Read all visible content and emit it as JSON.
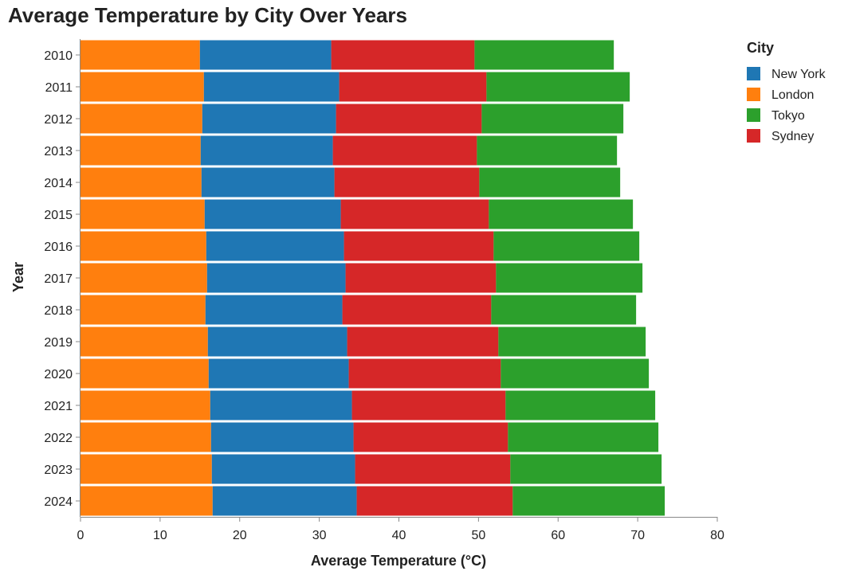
{
  "chart_data": {
    "type": "bar",
    "orientation": "horizontal",
    "stacked": true,
    "title": "Average Temperature by City Over Years",
    "xlabel": "Average Temperature (°C)",
    "ylabel": "Year",
    "xlim": [
      0,
      80
    ],
    "xticks": [
      0,
      10,
      20,
      30,
      40,
      50,
      60,
      70,
      80
    ],
    "grid": false,
    "legend_title": "City",
    "legend_position": "right",
    "categories": [
      "2010",
      "2011",
      "2012",
      "2013",
      "2014",
      "2015",
      "2016",
      "2017",
      "2018",
      "2019",
      "2020",
      "2021",
      "2022",
      "2023",
      "2024"
    ],
    "legend_order": [
      "New York",
      "London",
      "Tokyo",
      "Sydney"
    ],
    "stack_order": [
      "London",
      "New York",
      "Sydney",
      "Tokyo"
    ],
    "series": [
      {
        "name": "New York",
        "color": "#1f77b4",
        "values": [
          16.5,
          17.0,
          16.8,
          16.6,
          16.7,
          17.1,
          17.3,
          17.4,
          17.2,
          17.5,
          17.6,
          17.8,
          17.9,
          18.0,
          18.1
        ]
      },
      {
        "name": "London",
        "color": "#ff7f0e",
        "values": [
          15.0,
          15.5,
          15.3,
          15.1,
          15.2,
          15.6,
          15.8,
          15.9,
          15.7,
          16.0,
          16.1,
          16.3,
          16.4,
          16.5,
          16.6
        ]
      },
      {
        "name": "Tokyo",
        "color": "#2ca02c",
        "values": [
          17.5,
          18.0,
          17.8,
          17.6,
          17.7,
          18.1,
          18.3,
          18.4,
          18.2,
          18.5,
          18.6,
          18.8,
          18.9,
          19.0,
          19.1
        ]
      },
      {
        "name": "Sydney",
        "color": "#d62728",
        "values": [
          18.0,
          18.5,
          18.3,
          18.1,
          18.2,
          18.6,
          18.8,
          18.9,
          18.7,
          19.0,
          19.1,
          19.3,
          19.4,
          19.5,
          19.6
        ]
      }
    ]
  }
}
